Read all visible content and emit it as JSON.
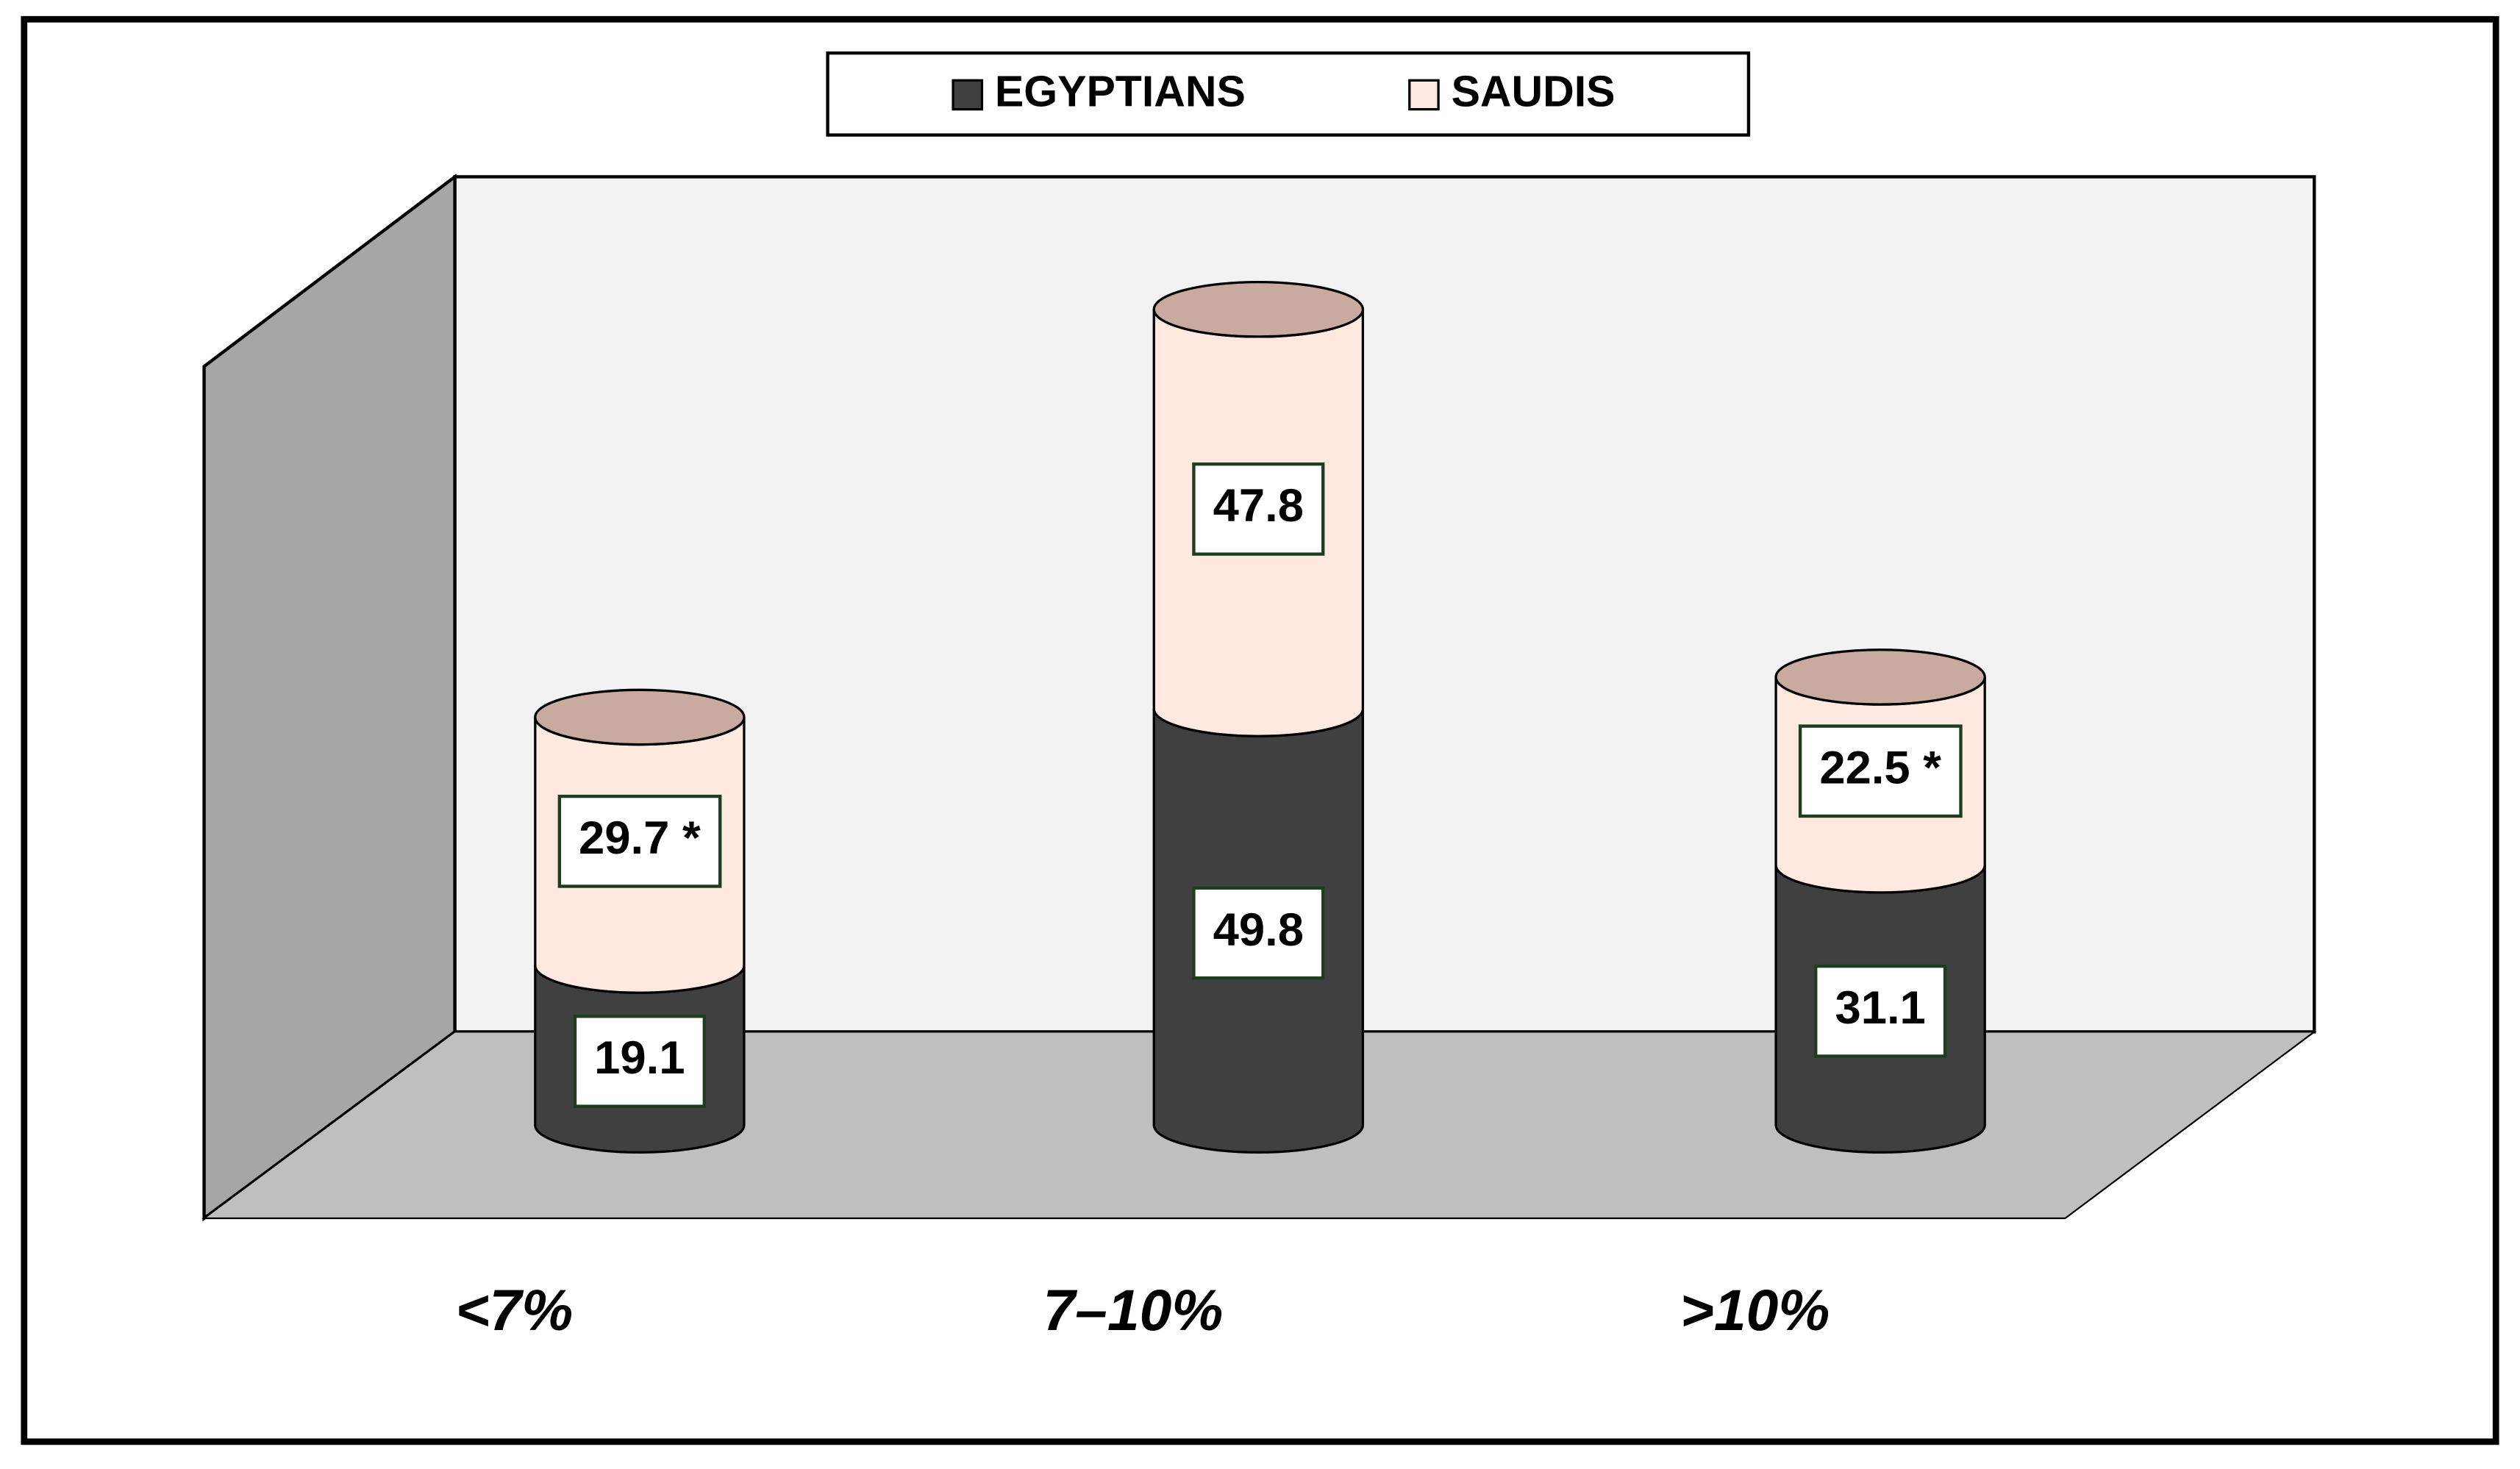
{
  "chart_data": {
    "type": "bar",
    "stacked": true,
    "style": "3d-cylinder",
    "categories": [
      "<7%",
      "7–10%",
      ">10%"
    ],
    "series": [
      {
        "name": "EGYPTIANS",
        "color": "#404040",
        "values": [
          19.1,
          49.8,
          31.1
        ]
      },
      {
        "name": "SAUDIS",
        "color": "#fde9df",
        "values": [
          29.7,
          47.8,
          22.5
        ],
        "value_labels": [
          "29.7 *",
          "47.8",
          "22.5 *"
        ]
      }
    ],
    "legend": "top"
  }
}
